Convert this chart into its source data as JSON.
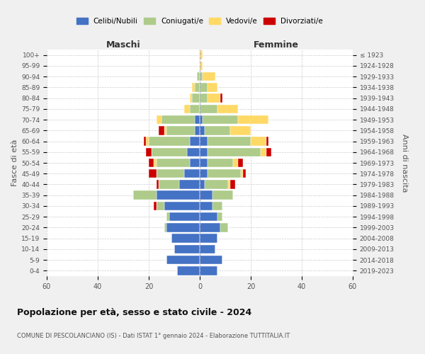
{
  "age_groups": [
    "0-4",
    "5-9",
    "10-14",
    "15-19",
    "20-24",
    "25-29",
    "30-34",
    "35-39",
    "40-44",
    "45-49",
    "50-54",
    "55-59",
    "60-64",
    "65-69",
    "70-74",
    "75-79",
    "80-84",
    "85-89",
    "90-94",
    "95-99",
    "100+"
  ],
  "birth_years": [
    "2019-2023",
    "2014-2018",
    "2009-2013",
    "2004-2008",
    "1999-2003",
    "1994-1998",
    "1989-1993",
    "1984-1988",
    "1979-1983",
    "1974-1978",
    "1969-1973",
    "1964-1968",
    "1959-1963",
    "1954-1958",
    "1949-1953",
    "1944-1948",
    "1939-1943",
    "1934-1938",
    "1929-1933",
    "1924-1928",
    "≤ 1923"
  ],
  "male": {
    "celibi": [
      9,
      13,
      10,
      11,
      13,
      12,
      14,
      17,
      8,
      6,
      4,
      5,
      4,
      2,
      2,
      0,
      0,
      0,
      0,
      0,
      0
    ],
    "coniugati": [
      0,
      0,
      0,
      0,
      1,
      1,
      3,
      9,
      8,
      11,
      13,
      14,
      16,
      11,
      13,
      4,
      3,
      2,
      1,
      0,
      0
    ],
    "vedovi": [
      0,
      0,
      0,
      0,
      0,
      0,
      0,
      0,
      0,
      0,
      1,
      0,
      1,
      1,
      2,
      2,
      1,
      1,
      0,
      0,
      0
    ],
    "divorziati": [
      0,
      0,
      0,
      0,
      0,
      0,
      1,
      0,
      1,
      3,
      2,
      2,
      1,
      2,
      0,
      0,
      0,
      0,
      0,
      0,
      0
    ]
  },
  "female": {
    "nubili": [
      7,
      9,
      6,
      7,
      8,
      7,
      5,
      5,
      2,
      3,
      3,
      3,
      3,
      2,
      1,
      0,
      0,
      0,
      0,
      0,
      0
    ],
    "coniugate": [
      0,
      0,
      0,
      0,
      3,
      2,
      4,
      8,
      9,
      13,
      10,
      21,
      17,
      10,
      14,
      7,
      3,
      3,
      1,
      0,
      0
    ],
    "vedove": [
      0,
      0,
      0,
      0,
      0,
      0,
      0,
      0,
      1,
      1,
      2,
      2,
      6,
      8,
      12,
      8,
      5,
      4,
      5,
      1,
      1
    ],
    "divorziate": [
      0,
      0,
      0,
      0,
      0,
      0,
      0,
      0,
      2,
      1,
      2,
      2,
      1,
      0,
      0,
      0,
      1,
      0,
      0,
      0,
      0
    ]
  },
  "colors": {
    "celibi": "#4472C4",
    "coniugati": "#AECB8A",
    "vedovi": "#FFD966",
    "divorziati": "#CC0000"
  },
  "title": "Popolazione per età, sesso e stato civile - 2024",
  "subtitle": "COMUNE DI PESCOLANCIANO (IS) - Dati ISTAT 1° gennaio 2024 - Elaborazione TUTTITALIA.IT",
  "xlabel_left": "Maschi",
  "xlabel_right": "Femmine",
  "ylabel_left": "Fasce di età",
  "ylabel_right": "Anni di nascita",
  "xlim": 60,
  "bg_color": "#f0f0f0",
  "plot_bg_color": "#ffffff",
  "grid_color": "#cccccc"
}
